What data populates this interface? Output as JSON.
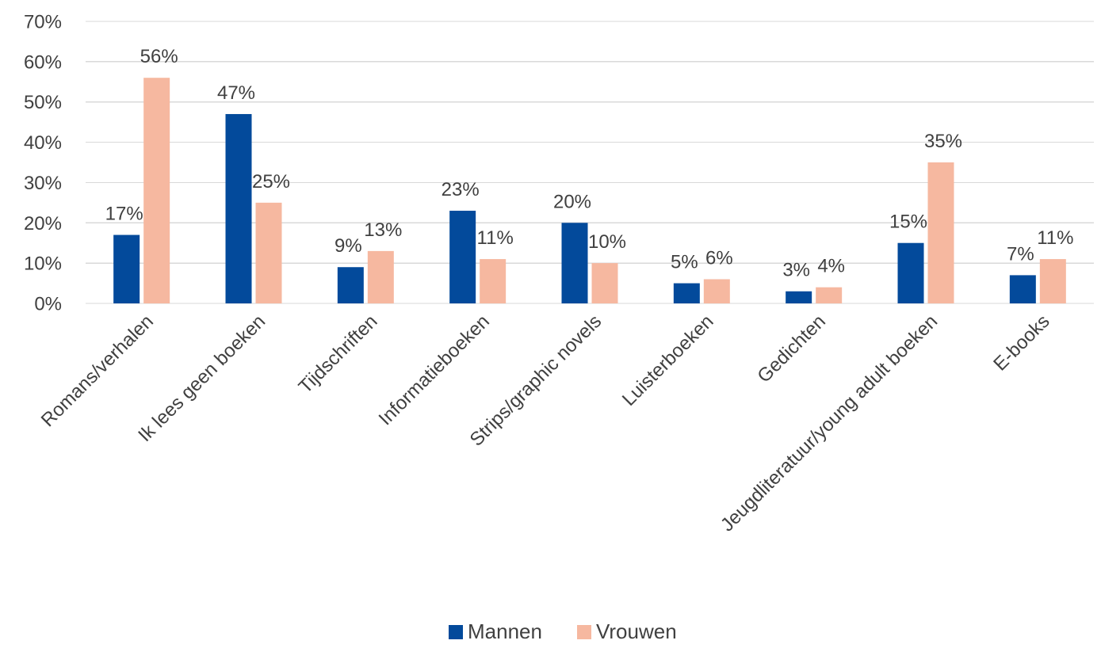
{
  "chart_data": {
    "type": "bar",
    "title": "",
    "xlabel": "",
    "ylabel": "",
    "categories": [
      "Romans/verhalen",
      "Ik lees geen boeken",
      "Tijdschriften",
      "Informatieboeken",
      "Strips/graphic novels",
      "Luisterboeken",
      "Gedichten",
      "Jeugdliteratuur/young adult boeken",
      "E-books"
    ],
    "series": [
      {
        "name": "Mannen",
        "color": "#034a9b",
        "values": [
          17,
          47,
          9,
          23,
          20,
          5,
          3,
          15,
          7
        ],
        "labels": [
          "17%",
          "47%",
          "9%",
          "23%",
          "20%",
          "5%",
          "3%",
          "15%",
          "7%"
        ]
      },
      {
        "name": "Vrouwen",
        "color": "#f6b8a0",
        "values": [
          56,
          25,
          13,
          11,
          10,
          6,
          4,
          35,
          11
        ],
        "labels": [
          "56%",
          "25%",
          "13%",
          "11%",
          "10%",
          "6%",
          "4%",
          "35%",
          "11%"
        ]
      }
    ],
    "ylim": [
      0,
      70
    ],
    "yticks": [
      0,
      10,
      20,
      30,
      40,
      50,
      60,
      70
    ],
    "ytick_labels": [
      "0%",
      "10%",
      "20%",
      "30%",
      "40%",
      "50%",
      "60%",
      "70%"
    ],
    "grid": true,
    "legend_position": "bottom"
  }
}
